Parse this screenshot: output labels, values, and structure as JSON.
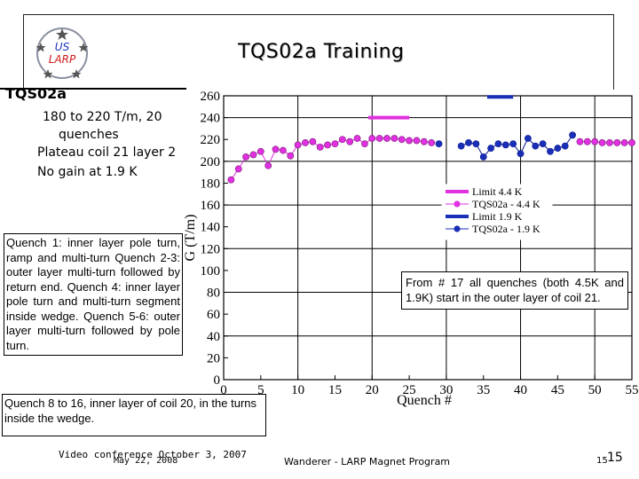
{
  "header": {
    "title": "TQS02a Training",
    "logo_text_top": "US",
    "logo_text_bottom": "LARP"
  },
  "left_panel": {
    "subtitle": "TQS02a",
    "bullets": [
      "180 to 220 T/m, 20",
      "quenches",
      "Plateau coil 21 layer 2",
      "No gain at 1.9 K"
    ]
  },
  "notes": {
    "quench_box": "Quench 1: inner layer pole turn, ramp and multi-turn Quench 2-3: outer layer multi-turn followed by return end. Quench 4: inner layer pole turn and multi-turn segment inside wedge. Quench 5-6: outer layer multi-turn followed by pole turn.",
    "quench816_box": "Quench 8 to 16, inner layer of coil 20, in the turns inside the wedge.",
    "from17_box": "From # 17 all quenches (both 4.5K and 1.9K) start in the outer layer of coil 21."
  },
  "footer": {
    "left": "Video conference October 3, 2007",
    "left_overlap": "May 22, 2008",
    "middle": "Wanderer - LARP Magnet Program",
    "page_small": "15",
    "page_large": "15"
  },
  "colors": {
    "magenta": "#e030e0",
    "blue": "#1a2fb8",
    "dark_blue": "#0c1a8c"
  },
  "chart_data": {
    "type": "scatter",
    "xlabel": "Quench #",
    "ylabel": "G (T/m)",
    "xlim": [
      0,
      55
    ],
    "ylim": [
      0,
      260
    ],
    "xticks": [
      0,
      5,
      10,
      15,
      20,
      25,
      30,
      35,
      40,
      45,
      50,
      55
    ],
    "yticks": [
      0,
      20,
      40,
      60,
      80,
      100,
      120,
      140,
      160,
      180,
      200,
      220,
      240,
      260
    ],
    "legend_position": "middle-right",
    "series": [
      {
        "name": "Limit 4.4 K",
        "kind": "limit",
        "x": [
          19.5,
          25
        ],
        "y": [
          240,
          240
        ]
      },
      {
        "name": "TQS02a - 4.4 K",
        "kind": "points",
        "x": [
          1,
          2,
          3,
          4,
          5,
          6,
          7,
          8,
          9,
          10,
          11,
          12,
          13,
          14,
          15,
          16,
          17,
          18,
          19,
          20,
          21,
          22,
          23,
          24,
          25,
          26,
          27,
          28,
          48,
          49,
          50,
          51,
          52,
          53,
          54,
          55
        ],
        "y": [
          183,
          193,
          204,
          206,
          209,
          196,
          211,
          210,
          205,
          215,
          217,
          218,
          213,
          215,
          216,
          220,
          218,
          221,
          216,
          221,
          221,
          221,
          221,
          220,
          219,
          219,
          218,
          217,
          218,
          218,
          218,
          217,
          217,
          217,
          217,
          217
        ]
      },
      {
        "name": "Limit 1.9 K",
        "kind": "limit",
        "x": [
          35.5,
          39
        ],
        "y": [
          259,
          259
        ]
      },
      {
        "name": "TQS02a - 1.9 K",
        "kind": "points",
        "x": [
          29,
          32,
          33,
          34,
          35,
          36,
          37,
          38,
          39,
          40,
          41,
          42,
          43,
          44,
          45,
          46,
          47
        ],
        "y": [
          216,
          214,
          217,
          216,
          204,
          212,
          216,
          215,
          216,
          207,
          221,
          214,
          216,
          209,
          212,
          214,
          224
        ]
      }
    ]
  }
}
